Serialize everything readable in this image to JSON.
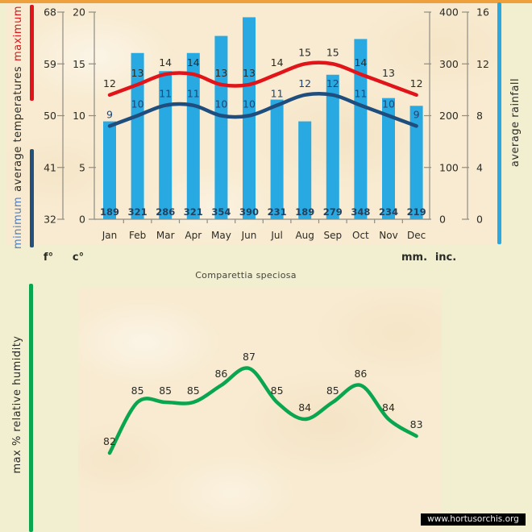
{
  "page": {
    "watermark": "www.hortusorchis.org"
  },
  "colors": {
    "bar_blue": "#29a9e1",
    "max_temp_red": "#e1141a",
    "min_temp_navy": "#1f4d7d",
    "humidity_green": "#0aa64f",
    "top_border_orange": "#eda03c",
    "page_bg": "#f2efd1",
    "panel_bg": "#f8ebd1",
    "axis_gray": "#8f8d84"
  },
  "chart_data": [
    {
      "type": "bar",
      "title": "Comparettia speciosa",
      "categories": [
        "Jan",
        "Feb",
        "Mar",
        "Apr",
        "May",
        "Jun",
        "Jul",
        "Aug",
        "Sep",
        "Oct",
        "Nov",
        "Dec"
      ],
      "series": [
        {
          "name": "average rainfall",
          "type": "bar",
          "unit": "mm",
          "values": [
            189,
            321,
            286,
            321,
            354,
            390,
            231,
            189,
            279,
            348,
            234,
            219
          ]
        },
        {
          "name": "maximum temperature",
          "type": "line",
          "unit": "c",
          "values": [
            12,
            13,
            14,
            14,
            13,
            13,
            14,
            15,
            15,
            14,
            13,
            12
          ]
        },
        {
          "name": "minimum temperature",
          "type": "line",
          "unit": "c",
          "values": [
            9,
            10,
            11,
            11,
            10,
            10,
            11,
            12,
            12,
            11,
            10,
            9
          ]
        }
      ],
      "axes": {
        "fahrenheit": {
          "label": "f°",
          "ticks": [
            68,
            59,
            50,
            41,
            32
          ]
        },
        "celsius": {
          "label": "c°",
          "ticks": [
            20,
            15,
            10,
            5,
            0
          ],
          "range": [
            0,
            20
          ]
        },
        "millimeters": {
          "label": "mm.",
          "ticks": [
            400,
            300,
            200,
            100,
            0
          ],
          "range": [
            0,
            400
          ]
        },
        "inches": {
          "label": "inc.",
          "ticks": [
            16,
            12,
            8,
            4,
            0
          ]
        }
      },
      "side_labels": {
        "minimum": "minimum",
        "average": "average temperatures",
        "maximum": "maximum",
        "rainfall": "average rainfall"
      },
      "legend_position": "left-and-right-rotated",
      "grid": false
    },
    {
      "type": "line",
      "ylabel": "max % relative humidity",
      "values": [
        82,
        85,
        85,
        85,
        86,
        87,
        85,
        84,
        85,
        86,
        84,
        83
      ],
      "grid": false,
      "note_axis": "no visible axes; 12 monthly points with data labels"
    }
  ]
}
